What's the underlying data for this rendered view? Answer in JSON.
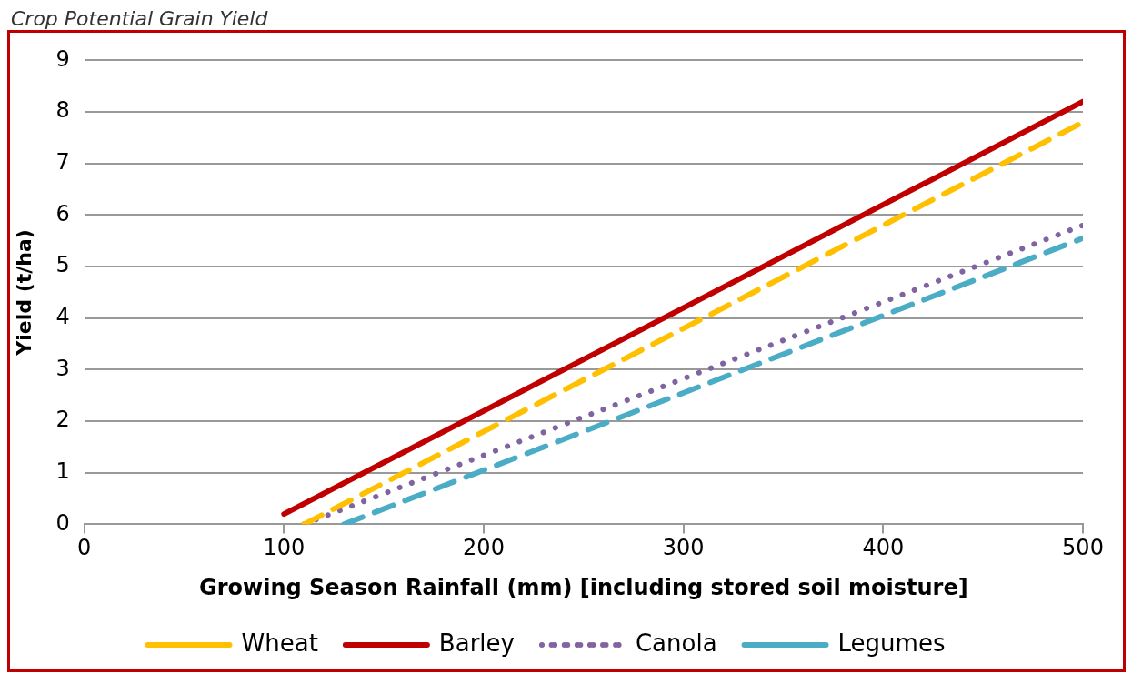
{
  "chart_data": {
    "type": "line",
    "title": "Crop Potential Grain Yield",
    "xlabel": "Growing Season Rainfall (mm) [including stored soil moisture]",
    "ylabel": "Yield (t/ha)",
    "xlim": [
      0,
      500
    ],
    "xticks": [
      0,
      100,
      200,
      300,
      400,
      500
    ],
    "ylim": [
      0,
      9
    ],
    "yticks": [
      0,
      1,
      2,
      3,
      4,
      5,
      6,
      7,
      8,
      9
    ],
    "grid": "y",
    "legend": "bottom",
    "marker": "none",
    "series": [
      {
        "name": "Wheat",
        "color": "#ffc000",
        "line_style": "dashed",
        "x": [
          110,
          500
        ],
        "values": [
          0,
          7.8
        ]
      },
      {
        "name": "Barley",
        "color": "#c00000",
        "line_style": "solid",
        "x": [
          100,
          500
        ],
        "values": [
          0.2,
          8.2
        ]
      },
      {
        "name": "Canola",
        "color": "#8064a2",
        "line_style": "dotted",
        "x": [
          110,
          500
        ],
        "values": [
          0,
          5.8
        ]
      },
      {
        "name": "Legumes",
        "color": "#4bacc6",
        "line_style": "dashed",
        "x": [
          130,
          500
        ],
        "values": [
          0,
          5.55
        ]
      }
    ]
  }
}
